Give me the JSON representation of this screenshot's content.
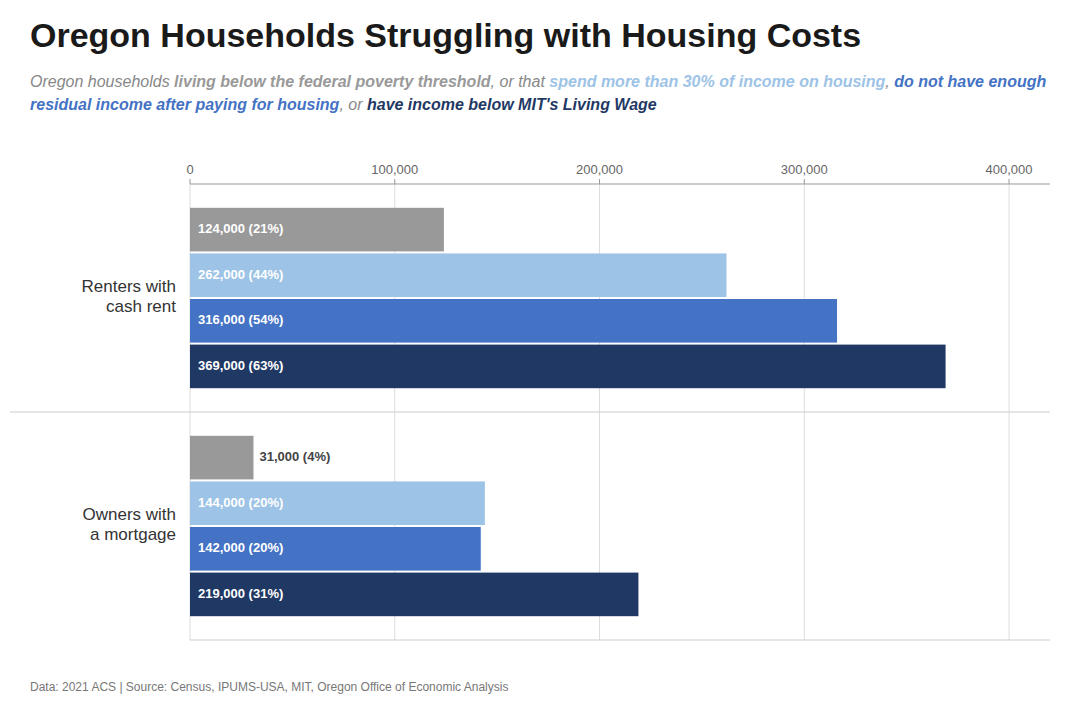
{
  "chart_data": {
    "type": "bar",
    "orientation": "horizontal",
    "title": "Oregon Households Struggling with Housing Costs",
    "subtitle": "Oregon households living below the federal poverty threshold, or that spend more than 30% of income on housing, do not have enough residual income after paying for housing, or have income below MIT's Living Wage",
    "categories": [
      "Renters with\ncash rent",
      "Owners with\na mortgage"
    ],
    "series": [
      {
        "name": "living below the federal poverty threshold",
        "color": "#999999",
        "values": [
          124000,
          31000
        ],
        "value_labels": [
          "124,000 (21%)",
          "31,000 (4%)"
        ]
      },
      {
        "name": "spend more than 30% of income on housing",
        "color": "#9dc3e6",
        "values": [
          262000,
          144000
        ],
        "value_labels": [
          "262,000 (44%)",
          "144,000 (20%)"
        ]
      },
      {
        "name": "do not have enough residual income after paying for housing",
        "color": "#4472c4",
        "values": [
          316000,
          142000
        ],
        "value_labels": [
          "316,000 (54%)",
          "142,000 (20%)"
        ]
      },
      {
        "name": "have income below MIT's Living Wage",
        "color": "#1f3864",
        "values": [
          369000,
          219000
        ],
        "value_labels": [
          "369,000 (63%)",
          "219,000 (31%)"
        ]
      }
    ],
    "xlim": [
      0,
      420000
    ],
    "xticks": [
      0,
      {
        "value": 100000,
        "label": "100,000"
      },
      {
        "value": 200000,
        "label": "200,000"
      },
      {
        "value": 300000,
        "label": "300,000"
      },
      {
        "value": 400000,
        "label": "400,000"
      }
    ],
    "grid": true,
    "data_labels": true,
    "annotations": [
      "Data: 2021 ACS | Source: Census, IPUMS-USA, MIT, Oregon Office of Economic Analysis"
    ]
  }
}
